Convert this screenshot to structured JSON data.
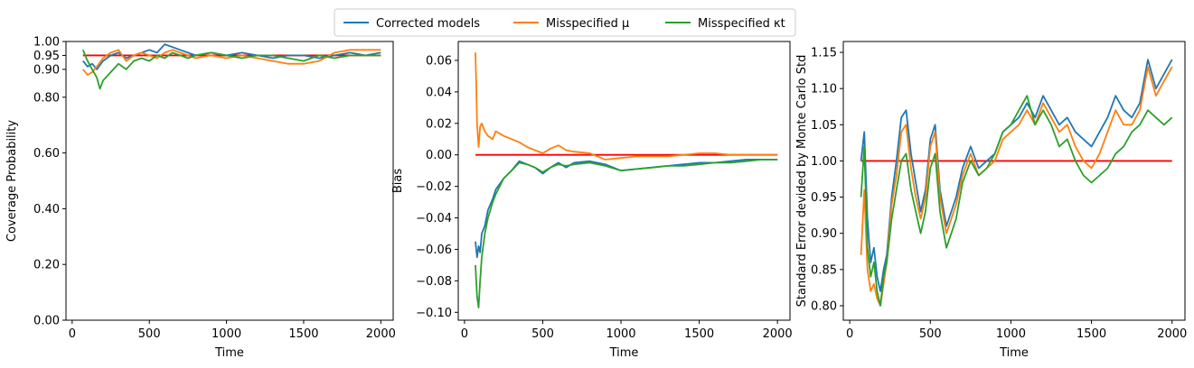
{
  "colors": {
    "corrected": "#1f77b4",
    "mu": "#ff7f0e",
    "kappa": "#2ca02c",
    "reference": "#ff0000"
  },
  "legend": {
    "placement": "top-center",
    "items": [
      {
        "key": "corrected",
        "label": "Corrected models"
      },
      {
        "key": "mu",
        "label": "Misspecified μ"
      },
      {
        "key": "kappa",
        "label": "Misspecified κt"
      }
    ]
  },
  "chart_data": [
    {
      "type": "line",
      "xlabel": "Time",
      "ylabel": "Coverage Probability",
      "xlim": [
        -40,
        2080
      ],
      "ylim": [
        0.0,
        1.0
      ],
      "xticks": [
        0,
        500,
        1000,
        1500,
        2000
      ],
      "yticks": [
        0.0,
        0.2,
        0.4,
        0.6,
        0.8,
        0.9,
        0.95,
        1.0
      ],
      "ytick_labels": [
        "0.00",
        "0.20",
        "0.40",
        "0.60",
        "0.80",
        "0.90",
        "0.95",
        "1.00"
      ],
      "reference_line": {
        "y": 0.95,
        "x": [
          70,
          2000
        ]
      },
      "series": [
        {
          "key": "corrected",
          "x": [
            70,
            100,
            130,
            160,
            200,
            250,
            300,
            350,
            400,
            450,
            500,
            550,
            600,
            650,
            700,
            750,
            800,
            900,
            1000,
            1100,
            1200,
            1300,
            1400,
            1500,
            1600,
            1700,
            1800,
            1900,
            2000
          ],
          "y": [
            0.93,
            0.91,
            0.92,
            0.9,
            0.93,
            0.95,
            0.96,
            0.94,
            0.95,
            0.96,
            0.97,
            0.96,
            0.99,
            0.98,
            0.97,
            0.96,
            0.95,
            0.96,
            0.95,
            0.96,
            0.95,
            0.94,
            0.95,
            0.95,
            0.94,
            0.95,
            0.96,
            0.95,
            0.96
          ]
        },
        {
          "key": "mu",
          "x": [
            70,
            100,
            130,
            160,
            200,
            250,
            300,
            350,
            400,
            450,
            500,
            550,
            600,
            650,
            700,
            750,
            800,
            900,
            1000,
            1100,
            1200,
            1300,
            1400,
            1500,
            1600,
            1700,
            1800,
            1900,
            2000
          ],
          "y": [
            0.9,
            0.88,
            0.89,
            0.91,
            0.94,
            0.96,
            0.97,
            0.93,
            0.95,
            0.96,
            0.95,
            0.94,
            0.96,
            0.97,
            0.96,
            0.95,
            0.94,
            0.95,
            0.94,
            0.95,
            0.94,
            0.93,
            0.92,
            0.92,
            0.93,
            0.96,
            0.97,
            0.97,
            0.97
          ]
        },
        {
          "key": "kappa",
          "x": [
            70,
            100,
            130,
            160,
            180,
            200,
            250,
            300,
            350,
            400,
            450,
            500,
            550,
            600,
            650,
            700,
            750,
            800,
            900,
            1000,
            1100,
            1200,
            1300,
            1400,
            1500,
            1600,
            1700,
            1800,
            1900,
            2000
          ],
          "y": [
            0.97,
            0.93,
            0.9,
            0.87,
            0.83,
            0.86,
            0.89,
            0.92,
            0.9,
            0.93,
            0.94,
            0.93,
            0.95,
            0.94,
            0.96,
            0.95,
            0.94,
            0.95,
            0.96,
            0.95,
            0.94,
            0.95,
            0.95,
            0.94,
            0.93,
            0.95,
            0.94,
            0.95,
            0.95,
            0.95
          ]
        }
      ]
    },
    {
      "type": "line",
      "xlabel": "Time",
      "ylabel": "Bias",
      "xlim": [
        -40,
        2080
      ],
      "ylim": [
        -0.105,
        0.072
      ],
      "xticks": [
        0,
        500,
        1000,
        1500,
        2000
      ],
      "yticks": [
        -0.1,
        -0.08,
        -0.06,
        -0.04,
        -0.02,
        0.0,
        0.02,
        0.04,
        0.06
      ],
      "ytick_labels": [
        "−0.10",
        "−0.08",
        "−0.06",
        "−0.04",
        "−0.02",
        "0.00",
        "0.02",
        "0.04",
        "0.06"
      ],
      "reference_line": {
        "y": 0.0,
        "x": [
          70,
          2000
        ]
      },
      "series": [
        {
          "key": "corrected",
          "x": [
            70,
            80,
            90,
            100,
            110,
            130,
            150,
            180,
            200,
            250,
            300,
            350,
            400,
            450,
            500,
            550,
            600,
            650,
            700,
            800,
            900,
            1000,
            1100,
            1200,
            1300,
            1400,
            1500,
            1600,
            1700,
            1800,
            1900,
            2000
          ],
          "y": [
            -0.055,
            -0.065,
            -0.058,
            -0.062,
            -0.05,
            -0.045,
            -0.035,
            -0.028,
            -0.022,
            -0.015,
            -0.01,
            -0.004,
            -0.006,
            -0.008,
            -0.012,
            -0.008,
            -0.005,
            -0.008,
            -0.005,
            -0.004,
            -0.006,
            -0.01,
            -0.009,
            -0.008,
            -0.007,
            -0.006,
            -0.005,
            -0.005,
            -0.004,
            -0.003,
            -0.003,
            -0.003
          ]
        },
        {
          "key": "mu",
          "x": [
            70,
            75,
            80,
            90,
            100,
            110,
            130,
            150,
            180,
            200,
            250,
            300,
            350,
            400,
            450,
            500,
            550,
            600,
            650,
            700,
            800,
            900,
            1000,
            1100,
            1200,
            1300,
            1400,
            1500,
            1600,
            1700,
            1800,
            1900,
            2000
          ],
          "y": [
            0.065,
            0.045,
            0.02,
            0.005,
            0.018,
            0.02,
            0.015,
            0.012,
            0.01,
            0.015,
            0.012,
            0.01,
            0.008,
            0.005,
            0.003,
            0.001,
            0.004,
            0.006,
            0.003,
            0.002,
            0.001,
            -0.003,
            -0.002,
            -0.001,
            -0.001,
            -0.001,
            0.0,
            0.001,
            0.001,
            0.0,
            0.0,
            0.0,
            0.0
          ]
        },
        {
          "key": "kappa",
          "x": [
            70,
            80,
            90,
            100,
            110,
            130,
            150,
            180,
            200,
            250,
            300,
            350,
            400,
            450,
            500,
            550,
            600,
            650,
            700,
            800,
            900,
            1000,
            1100,
            1200,
            1300,
            1400,
            1500,
            1600,
            1700,
            1800,
            1900,
            2000
          ],
          "y": [
            -0.07,
            -0.09,
            -0.097,
            -0.08,
            -0.065,
            -0.05,
            -0.04,
            -0.03,
            -0.025,
            -0.015,
            -0.01,
            -0.005,
            -0.006,
            -0.008,
            -0.011,
            -0.008,
            -0.006,
            -0.007,
            -0.006,
            -0.005,
            -0.007,
            -0.01,
            -0.009,
            -0.008,
            -0.007,
            -0.007,
            -0.006,
            -0.005,
            -0.005,
            -0.004,
            -0.003,
            -0.003
          ]
        }
      ]
    },
    {
      "type": "line",
      "xlabel": "Time",
      "ylabel": "Standard Error devided by Monte Carlo Std",
      "xlim": [
        -40,
        2080
      ],
      "ylim": [
        0.78,
        1.165
      ],
      "xticks": [
        0,
        500,
        1000,
        1500,
        2000
      ],
      "yticks": [
        0.8,
        0.85,
        0.9,
        0.95,
        1.0,
        1.05,
        1.1,
        1.15
      ],
      "ytick_labels": [
        "0.80",
        "0.85",
        "0.90",
        "0.95",
        "1.00",
        "1.05",
        "1.10",
        "1.15"
      ],
      "reference_line": {
        "y": 1.0,
        "x": [
          70,
          2000
        ]
      },
      "series": [
        {
          "key": "corrected",
          "x": [
            70,
            90,
            110,
            130,
            150,
            170,
            190,
            210,
            230,
            260,
            290,
            320,
            350,
            380,
            410,
            440,
            470,
            500,
            530,
            560,
            600,
            630,
            660,
            700,
            750,
            800,
            850,
            900,
            950,
            1000,
            1050,
            1100,
            1150,
            1200,
            1250,
            1300,
            1350,
            1400,
            1450,
            1500,
            1550,
            1600,
            1650,
            1700,
            1750,
            1800,
            1850,
            1900,
            1950,
            2000
          ],
          "y": [
            1.0,
            1.04,
            0.92,
            0.86,
            0.88,
            0.84,
            0.82,
            0.85,
            0.87,
            0.95,
            1.0,
            1.06,
            1.07,
            1.01,
            0.97,
            0.93,
            0.96,
            1.03,
            1.05,
            0.96,
            0.91,
            0.93,
            0.95,
            0.99,
            1.02,
            0.99,
            1.0,
            1.01,
            1.04,
            1.05,
            1.06,
            1.08,
            1.06,
            1.09,
            1.07,
            1.05,
            1.06,
            1.04,
            1.03,
            1.02,
            1.04,
            1.06,
            1.09,
            1.07,
            1.06,
            1.08,
            1.14,
            1.1,
            1.12,
            1.14
          ]
        },
        {
          "key": "mu",
          "x": [
            70,
            90,
            110,
            130,
            150,
            170,
            190,
            210,
            230,
            260,
            290,
            320,
            350,
            380,
            410,
            440,
            470,
            500,
            530,
            560,
            600,
            630,
            660,
            700,
            750,
            800,
            850,
            900,
            950,
            1000,
            1050,
            1100,
            1150,
            1200,
            1250,
            1300,
            1350,
            1400,
            1450,
            1500,
            1550,
            1600,
            1650,
            1700,
            1750,
            1800,
            1850,
            1900,
            1950,
            2000
          ],
          "y": [
            0.87,
            0.96,
            0.85,
            0.82,
            0.83,
            0.81,
            0.8,
            0.83,
            0.86,
            0.94,
            0.98,
            1.04,
            1.05,
            0.99,
            0.95,
            0.92,
            0.95,
            1.02,
            1.04,
            0.95,
            0.9,
            0.92,
            0.94,
            0.98,
            1.01,
            0.98,
            0.99,
            1.0,
            1.03,
            1.04,
            1.05,
            1.07,
            1.05,
            1.08,
            1.06,
            1.04,
            1.05,
            1.02,
            1.0,
            0.99,
            1.01,
            1.04,
            1.07,
            1.05,
            1.05,
            1.07,
            1.13,
            1.09,
            1.11,
            1.13
          ]
        },
        {
          "key": "kappa",
          "x": [
            70,
            90,
            110,
            130,
            150,
            170,
            190,
            210,
            230,
            260,
            290,
            320,
            350,
            380,
            410,
            440,
            470,
            500,
            530,
            560,
            600,
            630,
            660,
            700,
            750,
            800,
            850,
            900,
            950,
            1000,
            1050,
            1100,
            1150,
            1200,
            1250,
            1300,
            1350,
            1400,
            1450,
            1500,
            1550,
            1600,
            1650,
            1700,
            1750,
            1800,
            1850,
            1900,
            1950,
            2000
          ],
          "y": [
            0.95,
            1.02,
            0.88,
            0.84,
            0.86,
            0.82,
            0.8,
            0.84,
            0.86,
            0.92,
            0.96,
            1.0,
            1.01,
            0.96,
            0.93,
            0.9,
            0.93,
            0.99,
            1.01,
            0.93,
            0.88,
            0.9,
            0.92,
            0.97,
            1.0,
            0.98,
            0.99,
            1.01,
            1.04,
            1.05,
            1.07,
            1.09,
            1.05,
            1.07,
            1.05,
            1.02,
            1.03,
            1.0,
            0.98,
            0.97,
            0.98,
            0.99,
            1.01,
            1.02,
            1.04,
            1.05,
            1.07,
            1.06,
            1.05,
            1.06
          ]
        }
      ]
    }
  ]
}
